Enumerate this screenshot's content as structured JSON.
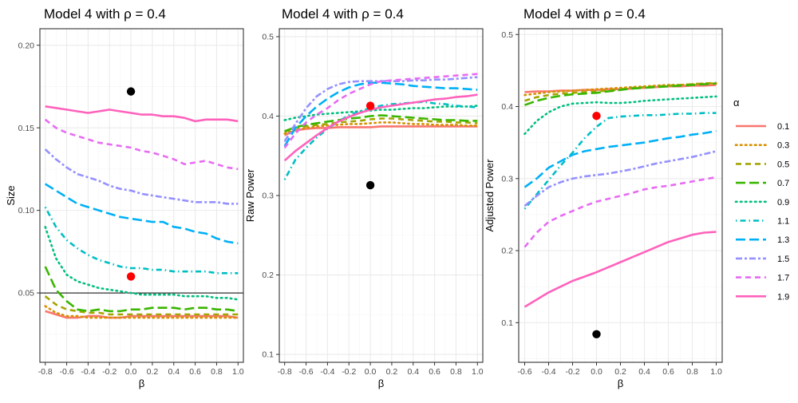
{
  "chart_data": [
    {
      "type": "line",
      "title": "Model 4 with ρ =  0.4",
      "xlabel": "β",
      "ylabel": "Size",
      "xlim": [
        -0.85,
        1.05
      ],
      "ylim": [
        0.008,
        0.21
      ],
      "xticks": [
        "-0.8",
        "-0.6",
        "-0.4",
        "-0.2",
        "0.0",
        "0.2",
        "0.4",
        "0.6",
        "0.8",
        "1.0"
      ],
      "yticks": [
        0.05,
        0.1,
        0.15,
        0.2
      ],
      "ytick_labels": [
        "0.05",
        "0.10",
        "0.15",
        "0.20"
      ],
      "hline": 0.05,
      "x": [
        -0.8,
        -0.7,
        -0.6,
        -0.5,
        -0.4,
        -0.3,
        -0.2,
        -0.1,
        0.0,
        0.1,
        0.2,
        0.3,
        0.4,
        0.5,
        0.6,
        0.7,
        0.8,
        0.9,
        1.0
      ],
      "series": [
        {
          "name": "0.1",
          "values": [
            0.039,
            0.037,
            0.035,
            0.035,
            0.036,
            0.036,
            0.035,
            0.035,
            0.036,
            0.036,
            0.036,
            0.036,
            0.036,
            0.036,
            0.036,
            0.036,
            0.036,
            0.036,
            0.035
          ]
        },
        {
          "name": "0.3",
          "values": [
            0.042,
            0.038,
            0.036,
            0.036,
            0.035,
            0.035,
            0.035,
            0.035,
            0.035,
            0.035,
            0.035,
            0.035,
            0.035,
            0.035,
            0.035,
            0.035,
            0.035,
            0.035,
            0.035
          ]
        },
        {
          "name": "0.5",
          "values": [
            0.048,
            0.043,
            0.04,
            0.039,
            0.038,
            0.038,
            0.037,
            0.037,
            0.037,
            0.037,
            0.037,
            0.037,
            0.037,
            0.037,
            0.037,
            0.037,
            0.037,
            0.037,
            0.037
          ]
        },
        {
          "name": "0.7",
          "values": [
            0.066,
            0.052,
            0.045,
            0.04,
            0.039,
            0.04,
            0.039,
            0.039,
            0.04,
            0.04,
            0.041,
            0.041,
            0.041,
            0.04,
            0.041,
            0.041,
            0.04,
            0.04,
            0.039
          ]
        },
        {
          "name": "0.9",
          "values": [
            0.09,
            0.071,
            0.061,
            0.057,
            0.055,
            0.053,
            0.052,
            0.051,
            0.05,
            0.049,
            0.049,
            0.049,
            0.049,
            0.048,
            0.048,
            0.048,
            0.047,
            0.047,
            0.046
          ]
        },
        {
          "name": "1.1",
          "values": [
            0.102,
            0.09,
            0.082,
            0.077,
            0.073,
            0.07,
            0.068,
            0.066,
            0.065,
            0.065,
            0.064,
            0.064,
            0.063,
            0.063,
            0.063,
            0.063,
            0.062,
            0.062,
            0.062
          ]
        },
        {
          "name": "1.3",
          "values": [
            0.116,
            0.112,
            0.108,
            0.104,
            0.102,
            0.1,
            0.098,
            0.096,
            0.095,
            0.094,
            0.093,
            0.093,
            0.09,
            0.089,
            0.087,
            0.086,
            0.083,
            0.081,
            0.08
          ]
        },
        {
          "name": "1.5",
          "values": [
            0.137,
            0.131,
            0.126,
            0.122,
            0.12,
            0.118,
            0.115,
            0.113,
            0.112,
            0.11,
            0.109,
            0.108,
            0.107,
            0.106,
            0.105,
            0.105,
            0.105,
            0.104,
            0.104
          ]
        },
        {
          "name": "1.7",
          "values": [
            0.155,
            0.15,
            0.147,
            0.145,
            0.143,
            0.141,
            0.14,
            0.139,
            0.138,
            0.136,
            0.135,
            0.133,
            0.131,
            0.128,
            0.129,
            0.13,
            0.128,
            0.126,
            0.125
          ]
        },
        {
          "name": "1.9",
          "values": [
            0.163,
            0.162,
            0.161,
            0.16,
            0.159,
            0.16,
            0.161,
            0.16,
            0.159,
            0.158,
            0.158,
            0.157,
            0.157,
            0.156,
            0.154,
            0.155,
            0.155,
            0.155,
            0.154
          ]
        }
      ],
      "points": [
        {
          "x": 0.0,
          "y": 0.172,
          "color": "#000000"
        },
        {
          "x": 0.0,
          "y": 0.06,
          "color": "#ff0000"
        }
      ]
    },
    {
      "type": "line",
      "title": "Model 4 with ρ =  0.4",
      "xlabel": "β",
      "ylabel": "Raw Power",
      "xlim": [
        -0.85,
        1.05
      ],
      "ylim": [
        0.09,
        0.51
      ],
      "xticks": [
        "-0.8",
        "-0.6",
        "-0.4",
        "-0.2",
        "0.0",
        "0.2",
        "0.4",
        "0.6",
        "0.8",
        "1.0"
      ],
      "yticks": [
        0.1,
        0.2,
        0.3,
        0.4,
        0.5
      ],
      "ytick_labels": [
        "0.1",
        "0.2",
        "0.3",
        "0.4",
        "0.5"
      ],
      "x": [
        -0.8,
        -0.7,
        -0.6,
        -0.5,
        -0.4,
        -0.3,
        -0.2,
        -0.1,
        0.0,
        0.1,
        0.2,
        0.3,
        0.4,
        0.5,
        0.6,
        0.7,
        0.8,
        0.9,
        1.0
      ],
      "series": [
        {
          "name": "0.1",
          "values": [
            0.376,
            0.382,
            0.384,
            0.385,
            0.385,
            0.386,
            0.386,
            0.386,
            0.386,
            0.387,
            0.387,
            0.387,
            0.387,
            0.387,
            0.387,
            0.387,
            0.387,
            0.387,
            0.387
          ]
        },
        {
          "name": "0.3",
          "values": [
            0.378,
            0.383,
            0.385,
            0.387,
            0.388,
            0.389,
            0.39,
            0.39,
            0.391,
            0.392,
            0.392,
            0.391,
            0.39,
            0.39,
            0.389,
            0.389,
            0.389,
            0.388,
            0.388
          ]
        },
        {
          "name": "0.5",
          "values": [
            0.38,
            0.385,
            0.387,
            0.389,
            0.39,
            0.392,
            0.393,
            0.394,
            0.396,
            0.397,
            0.397,
            0.396,
            0.395,
            0.394,
            0.393,
            0.393,
            0.392,
            0.392,
            0.391
          ]
        },
        {
          "name": "0.7",
          "values": [
            0.381,
            0.386,
            0.389,
            0.391,
            0.393,
            0.395,
            0.397,
            0.398,
            0.4,
            0.401,
            0.4,
            0.399,
            0.398,
            0.397,
            0.396,
            0.395,
            0.395,
            0.394,
            0.394
          ]
        },
        {
          "name": "0.9",
          "values": [
            0.395,
            0.398,
            0.4,
            0.402,
            0.403,
            0.404,
            0.405,
            0.406,
            0.407,
            0.408,
            0.408,
            0.409,
            0.41,
            0.41,
            0.411,
            0.412,
            0.412,
            0.412,
            0.413
          ]
        },
        {
          "name": "1.1",
          "values": [
            0.32,
            0.345,
            0.36,
            0.373,
            0.384,
            0.393,
            0.401,
            0.406,
            0.41,
            0.413,
            0.415,
            0.416,
            0.417,
            0.418,
            0.416,
            0.415,
            0.413,
            0.412,
            0.411
          ]
        },
        {
          "name": "1.3",
          "values": [
            0.362,
            0.385,
            0.4,
            0.412,
            0.422,
            0.43,
            0.436,
            0.44,
            0.442,
            0.442,
            0.441,
            0.44,
            0.438,
            0.437,
            0.436,
            0.435,
            0.435,
            0.434,
            0.433
          ]
        },
        {
          "name": "1.5",
          "values": [
            0.368,
            0.39,
            0.41,
            0.425,
            0.434,
            0.44,
            0.443,
            0.444,
            0.444,
            0.444,
            0.444,
            0.444,
            0.445,
            0.445,
            0.446,
            0.446,
            0.447,
            0.448,
            0.449
          ]
        },
        {
          "name": "1.7",
          "values": [
            0.36,
            0.378,
            0.392,
            0.402,
            0.41,
            0.42,
            0.428,
            0.434,
            0.44,
            0.444,
            0.445,
            0.446,
            0.447,
            0.448,
            0.449,
            0.45,
            0.451,
            0.452,
            0.453
          ]
        },
        {
          "name": "1.9",
          "values": [
            0.344,
            0.356,
            0.366,
            0.376,
            0.385,
            0.393,
            0.399,
            0.404,
            0.408,
            0.411,
            0.413,
            0.415,
            0.417,
            0.419,
            0.421,
            0.422,
            0.424,
            0.425,
            0.427
          ]
        }
      ],
      "points": [
        {
          "x": 0.0,
          "y": 0.313,
          "color": "#000000"
        },
        {
          "x": 0.0,
          "y": 0.413,
          "color": "#ff0000"
        }
      ]
    },
    {
      "type": "line",
      "title": "Model 4 with ρ =  0.4",
      "xlabel": "β",
      "ylabel": "Adjusted Power",
      "xlim": [
        -0.65,
        1.05
      ],
      "ylim": [
        0.045,
        0.508
      ],
      "xticks": [
        "-0.6",
        "-0.4",
        "-0.2",
        "0.0",
        "0.2",
        "0.4",
        "0.6",
        "0.8",
        "1.0"
      ],
      "yticks": [
        0.1,
        0.2,
        0.3,
        0.4,
        0.5
      ],
      "ytick_labels": [
        "0.1",
        "0.2",
        "0.3",
        "0.4",
        "0.5"
      ],
      "x": [
        -0.6,
        -0.5,
        -0.4,
        -0.3,
        -0.2,
        -0.1,
        0.0,
        0.1,
        0.2,
        0.3,
        0.4,
        0.5,
        0.6,
        0.7,
        0.8,
        0.9,
        1.0
      ],
      "series": [
        {
          "name": "0.1",
          "values": [
            0.42,
            0.421,
            0.421,
            0.422,
            0.422,
            0.423,
            0.423,
            0.424,
            0.424,
            0.425,
            0.426,
            0.427,
            0.428,
            0.428,
            0.429,
            0.429,
            0.43
          ]
        },
        {
          "name": "0.3",
          "values": [
            0.416,
            0.418,
            0.42,
            0.421,
            0.422,
            0.423,
            0.424,
            0.425,
            0.426,
            0.427,
            0.428,
            0.429,
            0.43,
            0.43,
            0.431,
            0.432,
            0.432
          ]
        },
        {
          "name": "0.5",
          "values": [
            0.408,
            0.413,
            0.416,
            0.418,
            0.419,
            0.42,
            0.421,
            0.422,
            0.424,
            0.426,
            0.427,
            0.428,
            0.429,
            0.43,
            0.431,
            0.432,
            0.433
          ]
        },
        {
          "name": "0.7",
          "values": [
            0.402,
            0.408,
            0.412,
            0.415,
            0.417,
            0.418,
            0.419,
            0.421,
            0.423,
            0.425,
            0.426,
            0.427,
            0.428,
            0.429,
            0.43,
            0.431,
            0.432
          ]
        },
        {
          "name": "0.9",
          "values": [
            0.362,
            0.38,
            0.392,
            0.4,
            0.404,
            0.405,
            0.406,
            0.405,
            0.405,
            0.406,
            0.408,
            0.409,
            0.41,
            0.411,
            0.412,
            0.413,
            0.414
          ]
        },
        {
          "name": "1.1",
          "values": [
            0.258,
            0.278,
            0.298,
            0.318,
            0.336,
            0.356,
            0.372,
            0.384,
            0.386,
            0.387,
            0.388,
            0.388,
            0.389,
            0.39,
            0.39,
            0.391,
            0.391
          ]
        },
        {
          "name": "1.3",
          "values": [
            0.288,
            0.3,
            0.315,
            0.324,
            0.333,
            0.338,
            0.341,
            0.344,
            0.346,
            0.348,
            0.35,
            0.353,
            0.356,
            0.358,
            0.361,
            0.363,
            0.366
          ]
        },
        {
          "name": "1.5",
          "values": [
            0.262,
            0.276,
            0.288,
            0.295,
            0.3,
            0.303,
            0.305,
            0.307,
            0.31,
            0.313,
            0.317,
            0.321,
            0.324,
            0.327,
            0.33,
            0.334,
            0.338
          ]
        },
        {
          "name": "1.7",
          "values": [
            0.205,
            0.225,
            0.24,
            0.248,
            0.255,
            0.262,
            0.268,
            0.272,
            0.276,
            0.28,
            0.285,
            0.288,
            0.29,
            0.293,
            0.296,
            0.299,
            0.302
          ]
        },
        {
          "name": "1.9",
          "values": [
            0.122,
            0.132,
            0.142,
            0.15,
            0.158,
            0.164,
            0.17,
            0.177,
            0.184,
            0.191,
            0.198,
            0.205,
            0.212,
            0.217,
            0.222,
            0.225,
            0.226
          ]
        }
      ],
      "points": [
        {
          "x": 0.0,
          "y": 0.084,
          "color": "#000000"
        },
        {
          "x": 0.0,
          "y": 0.387,
          "color": "#ff0000"
        }
      ]
    }
  ],
  "legend": {
    "title": "α",
    "placement": "right",
    "items": [
      {
        "label": "0.1",
        "color": "#F8766D",
        "dash": "solid"
      },
      {
        "label": "0.3",
        "color": "#D89000",
        "dash": "dotted"
      },
      {
        "label": "0.5",
        "color": "#A3A500",
        "dash": "dashed"
      },
      {
        "label": "0.7",
        "color": "#39B600",
        "dash": "longdash"
      },
      {
        "label": "0.9",
        "color": "#00BF7D",
        "dash": "dotted"
      },
      {
        "label": "1.1",
        "color": "#00BFC4",
        "dash": "dotdash"
      },
      {
        "label": "1.3",
        "color": "#00B0F6",
        "dash": "longdash"
      },
      {
        "label": "1.5",
        "color": "#9590FF",
        "dash": "twodash"
      },
      {
        "label": "1.7",
        "color": "#E76BF3",
        "dash": "dashed"
      },
      {
        "label": "1.9",
        "color": "#FF62BC",
        "dash": "solid"
      }
    ]
  },
  "colors": {
    "panel_background": "#ffffff",
    "grid_major": "#ebebeb",
    "grid_minor": "#f5f5f5",
    "panel_border": "#333333",
    "reference_line": "#000000"
  }
}
